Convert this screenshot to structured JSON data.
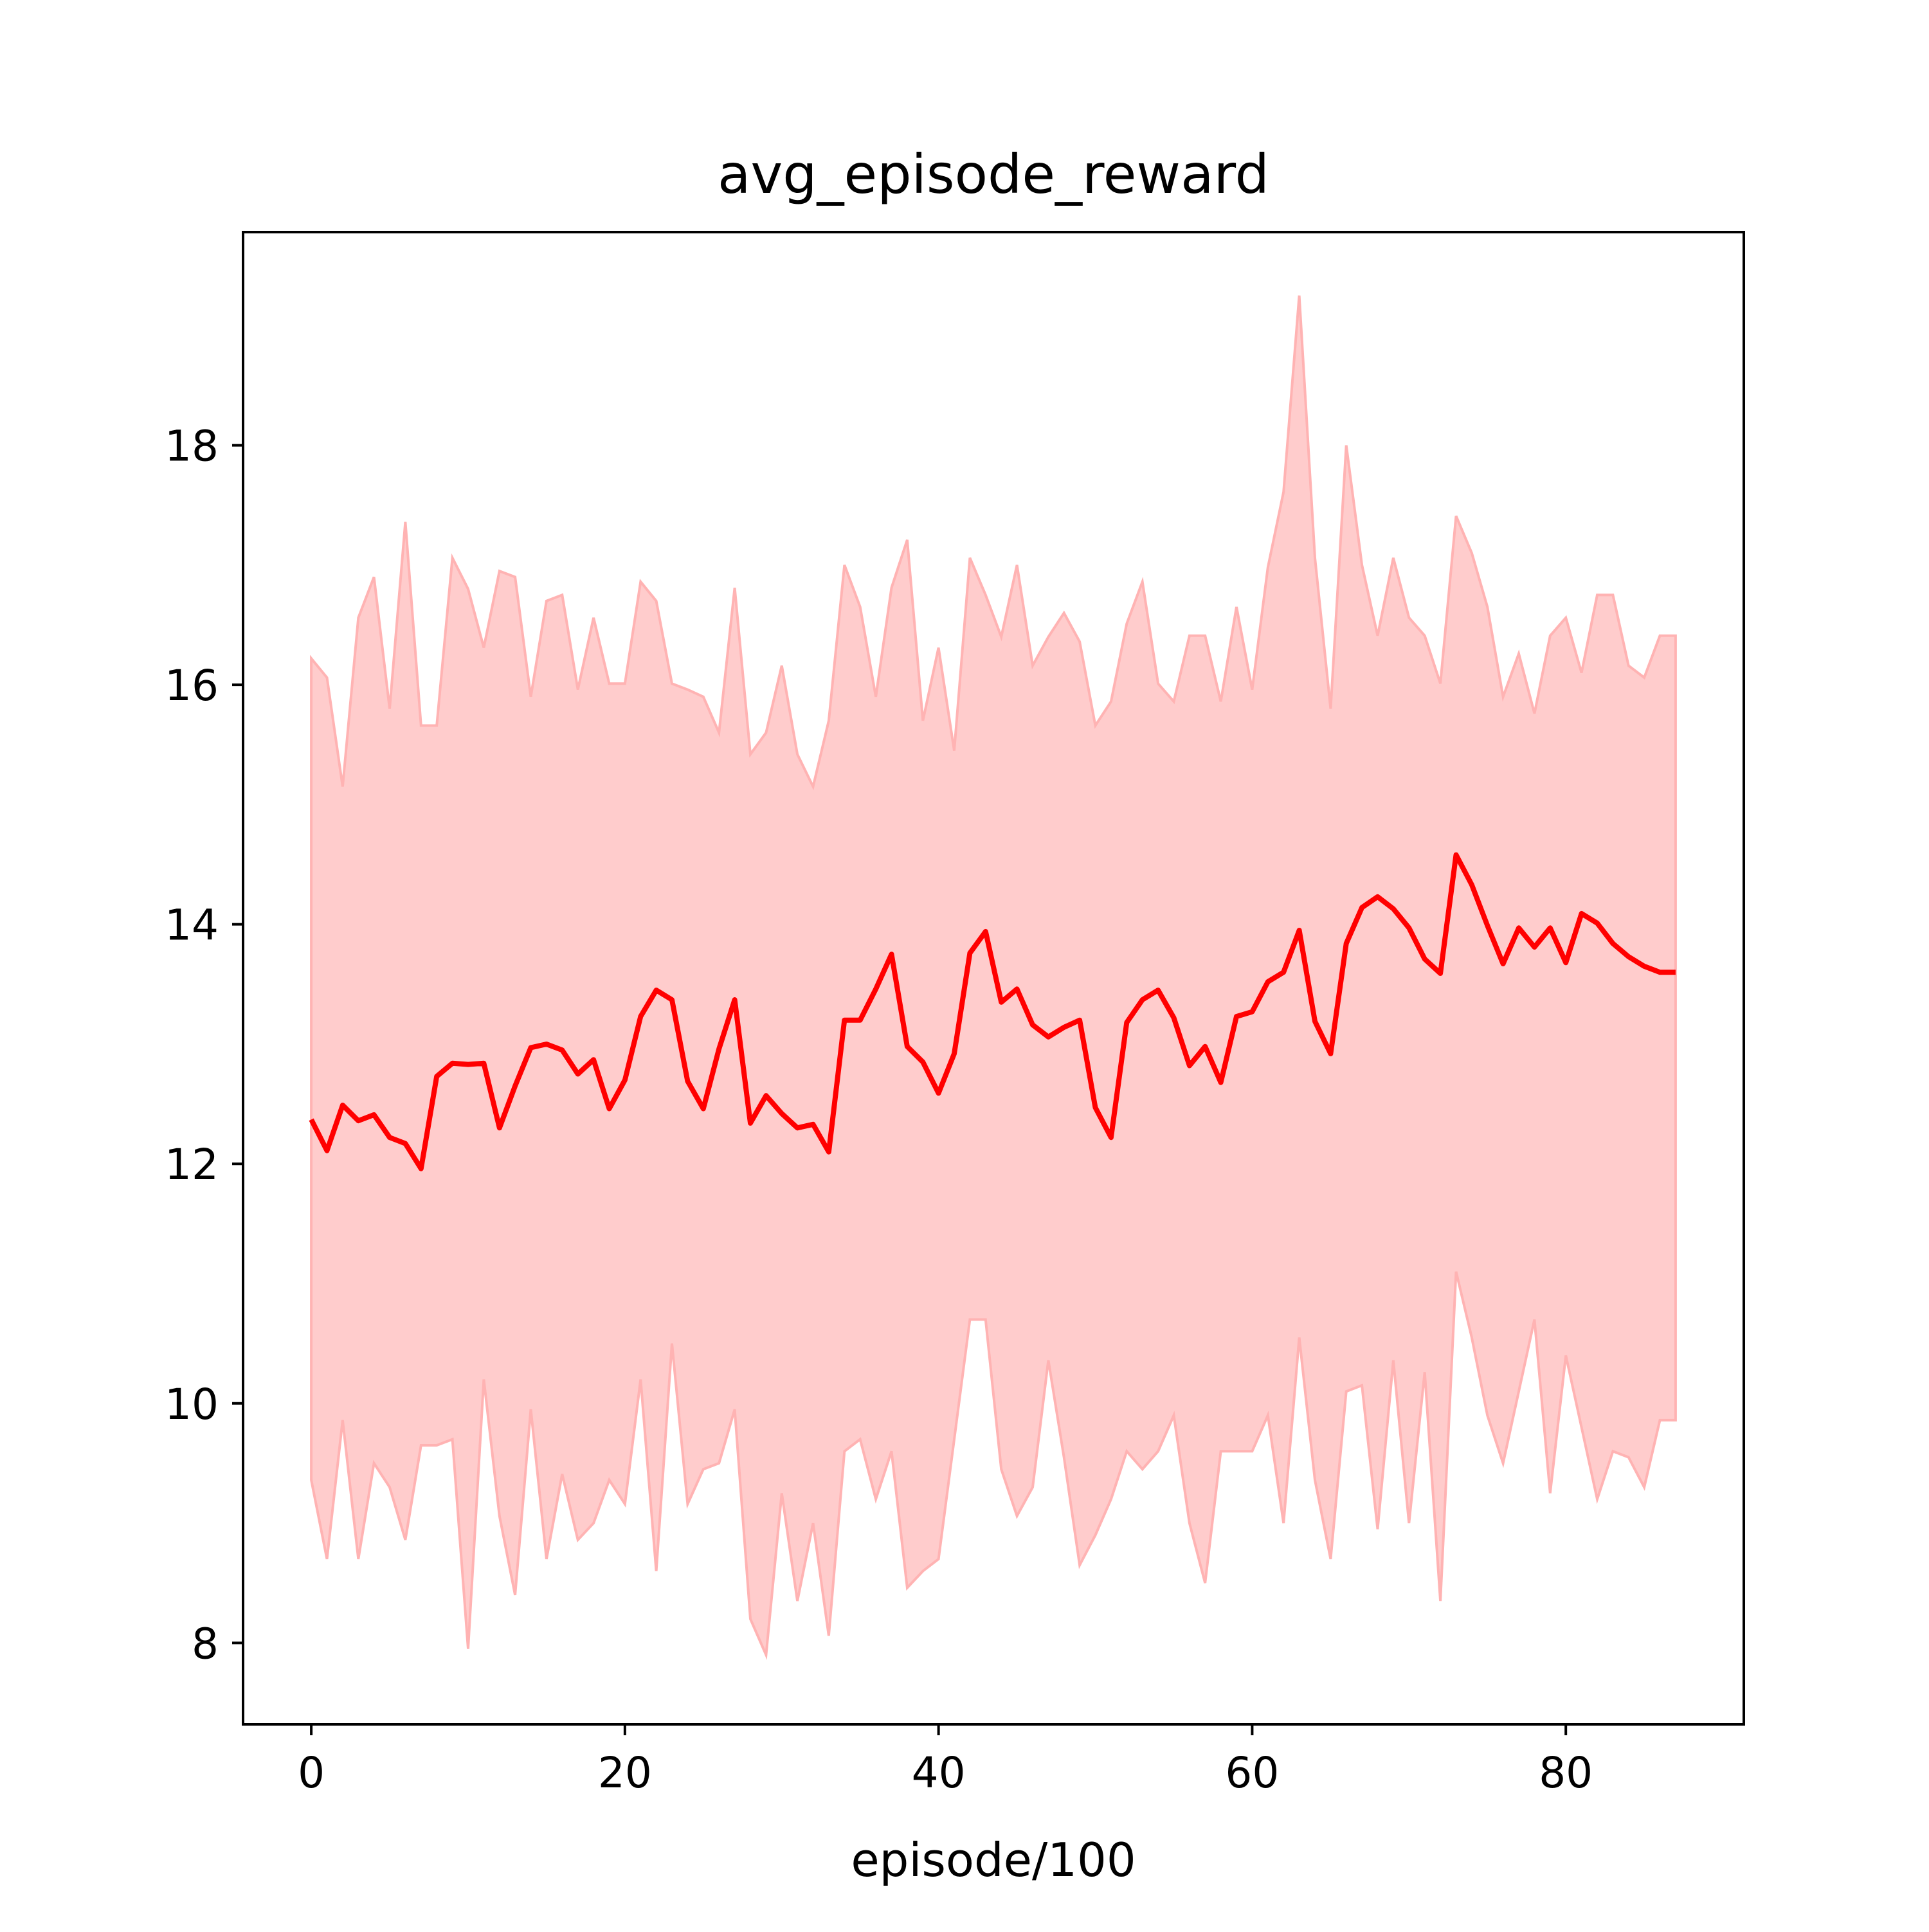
{
  "chart_data": {
    "type": "line",
    "title": "avg_episode_reward",
    "xlabel": "episode/100",
    "ylabel": "",
    "xlim": [
      -4.35,
      91.35
    ],
    "ylim": [
      7.32,
      19.78
    ],
    "xticks": [
      0,
      20,
      40,
      60,
      80
    ],
    "yticks": [
      8,
      10,
      12,
      14,
      16,
      18
    ],
    "grid": false,
    "legend": "none",
    "colors": {
      "line": "#ff0000",
      "band_fill": "#ffcccc",
      "band_edge": "#ffb3b3",
      "axes": "#000000",
      "background": "#ffffff"
    },
    "series": [
      {
        "x": [
          0,
          1,
          2,
          3,
          4,
          5,
          6,
          7,
          8,
          9,
          10,
          11,
          12,
          13,
          14,
          15,
          16,
          17,
          18,
          19,
          20,
          21,
          22,
          23,
          24,
          25,
          26,
          27,
          28,
          29,
          30,
          31,
          32,
          33,
          34,
          35,
          36,
          37,
          38,
          39,
          40,
          41,
          42,
          43,
          44,
          45,
          46,
          47,
          48,
          49,
          50,
          51,
          52,
          53,
          54,
          55,
          56,
          57,
          58,
          59,
          60,
          61,
          62,
          63,
          64,
          65,
          66,
          67,
          68,
          69,
          70,
          71,
          72,
          73,
          74,
          75,
          76,
          77,
          78,
          79,
          80,
          81,
          82,
          83,
          84,
          85,
          86,
          87
        ],
        "mean": [
          12.37,
          12.11,
          12.49,
          12.36,
          12.41,
          12.22,
          12.17,
          11.96,
          12.73,
          12.84,
          12.83,
          12.84,
          12.3,
          12.65,
          12.97,
          13.0,
          12.95,
          12.75,
          12.87,
          12.46,
          12.7,
          13.23,
          13.45,
          13.37,
          12.69,
          12.46,
          12.96,
          13.37,
          12.34,
          12.57,
          12.42,
          12.3,
          12.33,
          12.1,
          13.2,
          13.2,
          13.46,
          13.75,
          12.98,
          12.85,
          12.59,
          12.92,
          13.76,
          13.94,
          13.35,
          13.46,
          13.16,
          13.06,
          13.14,
          13.2,
          12.47,
          12.22,
          13.18,
          13.37,
          13.45,
          13.22,
          12.82,
          12.98,
          12.68,
          13.23,
          13.27,
          13.52,
          13.6,
          13.95,
          13.19,
          12.92,
          13.84,
          14.14,
          14.23,
          14.13,
          13.97,
          13.71,
          13.59,
          14.58,
          14.33,
          13.99,
          13.67,
          13.97,
          13.81,
          13.97,
          13.68,
          14.09,
          14.01,
          13.84,
          13.73,
          13.65,
          13.6,
          13.6
        ],
        "upper": [
          16.22,
          16.06,
          15.15,
          16.56,
          16.9,
          15.8,
          17.36,
          15.66,
          15.66,
          17.06,
          16.8,
          16.31,
          16.95,
          16.9,
          15.9,
          16.7,
          16.75,
          15.96,
          16.56,
          16.01,
          16.01,
          16.86,
          16.7,
          16.01,
          15.96,
          15.9,
          15.6,
          16.81,
          15.42,
          15.6,
          16.16,
          15.42,
          15.15,
          15.7,
          17.0,
          16.65,
          15.9,
          16.81,
          17.21,
          15.7,
          16.31,
          15.45,
          17.06,
          16.75,
          16.4,
          17.0,
          16.16,
          16.4,
          16.6,
          16.36,
          15.66,
          15.86,
          16.51,
          16.86,
          16.01,
          15.86,
          16.41,
          16.41,
          15.86,
          16.65,
          15.96,
          16.98,
          17.61,
          19.25,
          17.06,
          15.8,
          18.0,
          17.0,
          16.41,
          17.06,
          16.56,
          16.41,
          16.01,
          17.41,
          17.1,
          16.65,
          15.9,
          16.26,
          15.76,
          16.41,
          16.56,
          16.1,
          16.75,
          16.75,
          16.16,
          16.06,
          16.41,
          16.41
        ],
        "lower": [
          9.36,
          8.7,
          9.86,
          8.7,
          9.5,
          9.3,
          8.86,
          9.65,
          9.65,
          9.7,
          7.95,
          10.2,
          9.06,
          8.4,
          9.95,
          8.7,
          9.41,
          8.86,
          9.0,
          9.36,
          9.16,
          10.2,
          8.6,
          10.5,
          9.16,
          9.45,
          9.5,
          9.95,
          8.2,
          7.9,
          9.25,
          8.35,
          9.0,
          8.06,
          9.6,
          9.7,
          9.2,
          9.6,
          8.46,
          8.6,
          8.7,
          9.7,
          10.7,
          10.7,
          9.45,
          9.06,
          9.3,
          10.36,
          9.55,
          8.65,
          8.9,
          9.2,
          9.6,
          9.45,
          9.6,
          9.9,
          9.0,
          8.5,
          9.6,
          9.6,
          9.6,
          9.9,
          9.0,
          10.55,
          9.36,
          8.7,
          10.1,
          10.15,
          8.95,
          10.36,
          9.0,
          10.26,
          8.35,
          11.1,
          10.55,
          9.9,
          9.5,
          10.1,
          10.7,
          9.25,
          10.4,
          9.8,
          9.2,
          9.6,
          9.55,
          9.3,
          9.86,
          9.86
        ]
      }
    ]
  }
}
